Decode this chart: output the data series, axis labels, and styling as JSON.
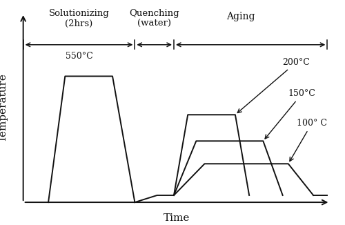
{
  "xlabel": "Time",
  "ylabel": "Temperature",
  "background_color": "#ffffff",
  "line_color": "#111111",
  "solutionizing_label": "Solutionizing\n(2hrs)",
  "quenching_label": "Quenching\n(water)",
  "aging_label": "Aging",
  "temp_550": "550°C",
  "temp_200": "200°C",
  "temp_150": "150°C",
  "temp_100": "100° C",
  "xlim": [
    -0.3,
    11.5
  ],
  "ylim": [
    -1.2,
    11.5
  ]
}
